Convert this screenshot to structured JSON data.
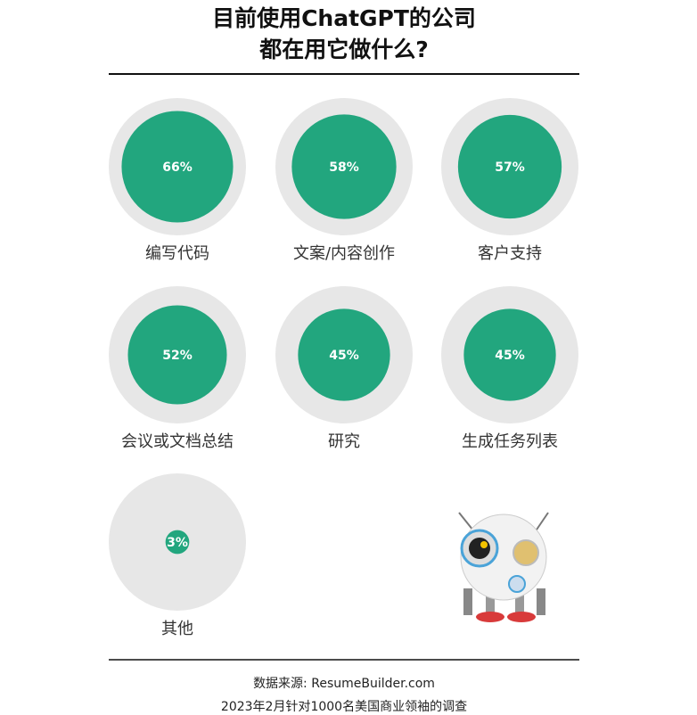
{
  "chart_data": {
    "type": "proportional-circles",
    "title": [
      "目前使用ChatGPT的公司",
      "都在用它做什么?"
    ],
    "categories": [
      "编写代码",
      "文案/内容创作",
      "客户支持",
      "会议或文档总结",
      "研究",
      "生成任务列表",
      "其他"
    ],
    "values": [
      66,
      58,
      57,
      52,
      45,
      45,
      3
    ],
    "value_labels": [
      "66%",
      "58%",
      "57%",
      "52%",
      "45%",
      "45%",
      "3%"
    ],
    "sizelim": [
      0,
      100
    ],
    "color": "#22a67e",
    "background_color": "#e7e7e7",
    "source": "数据来源: ResumeBuilder.com",
    "note": "2023年2月针对1000名美国商业领袖的调查"
  }
}
